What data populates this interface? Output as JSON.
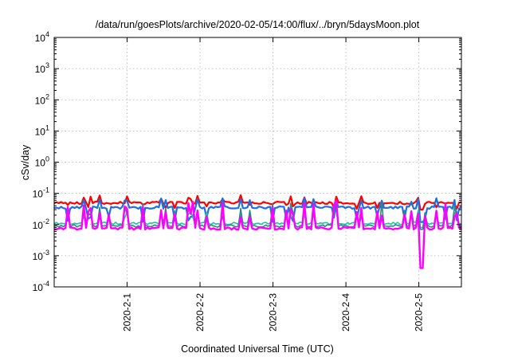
{
  "chart_data": {
    "type": "line",
    "title": "/data/run/goesPlots/archive/2020-02-05/14:00/flux/../bryn/5daysMoon.plot",
    "xlabel": "Coordinated Universal Time (UTC)",
    "ylabel": "cSv/day",
    "yscale": "log",
    "ylim": [
      0.0001,
      10000
    ],
    "xlim": [
      "2020-01-31T00:00",
      "2020-02-05T14:00"
    ],
    "x_tick_labels": [
      "2020-2-1",
      "2020-2-2",
      "2020-2-3",
      "2020-2-4",
      "2020-2-5"
    ],
    "x_tick_values": [
      "2020-02-01",
      "2020-02-02",
      "2020-02-03",
      "2020-02-04",
      "2020-02-05"
    ],
    "y_tick_values": [
      0.0001,
      0.001,
      0.01,
      0.1,
      1,
      10,
      100,
      1000,
      10000
    ],
    "y_tick_labels": [
      {
        "base": "10",
        "exp": "-4"
      },
      {
        "base": "10",
        "exp": "-3"
      },
      {
        "base": "10",
        "exp": "-2"
      },
      {
        "base": "10",
        "exp": "-1"
      },
      {
        "base": "10",
        "exp": "0"
      },
      {
        "base": "10",
        "exp": "1"
      },
      {
        "base": "10",
        "exp": "2"
      },
      {
        "base": "10",
        "exp": "3"
      },
      {
        "base": "10",
        "exp": "4"
      }
    ],
    "grid": true,
    "legend": "none",
    "series": [
      {
        "color": "#ff0000",
        "baseline": 0.05,
        "spike_high": 0.08,
        "dip_low": 0.03
      },
      {
        "color": "#1f6fe0",
        "baseline": 0.035,
        "spike_high": 0.065,
        "dip_low": 0.012
      },
      {
        "color": "#1fc4a0",
        "baseline": 0.011,
        "spike_high": 0.03,
        "dip_low": 0.008
      },
      {
        "color": "#2a8a88",
        "baseline": 0.009,
        "spike_high": 0.05,
        "dip_low": 0.007
      },
      {
        "color": "#ff00ff",
        "baseline": 0.0075,
        "spike_high": 0.06,
        "dip_low": 0.0004
      }
    ]
  }
}
